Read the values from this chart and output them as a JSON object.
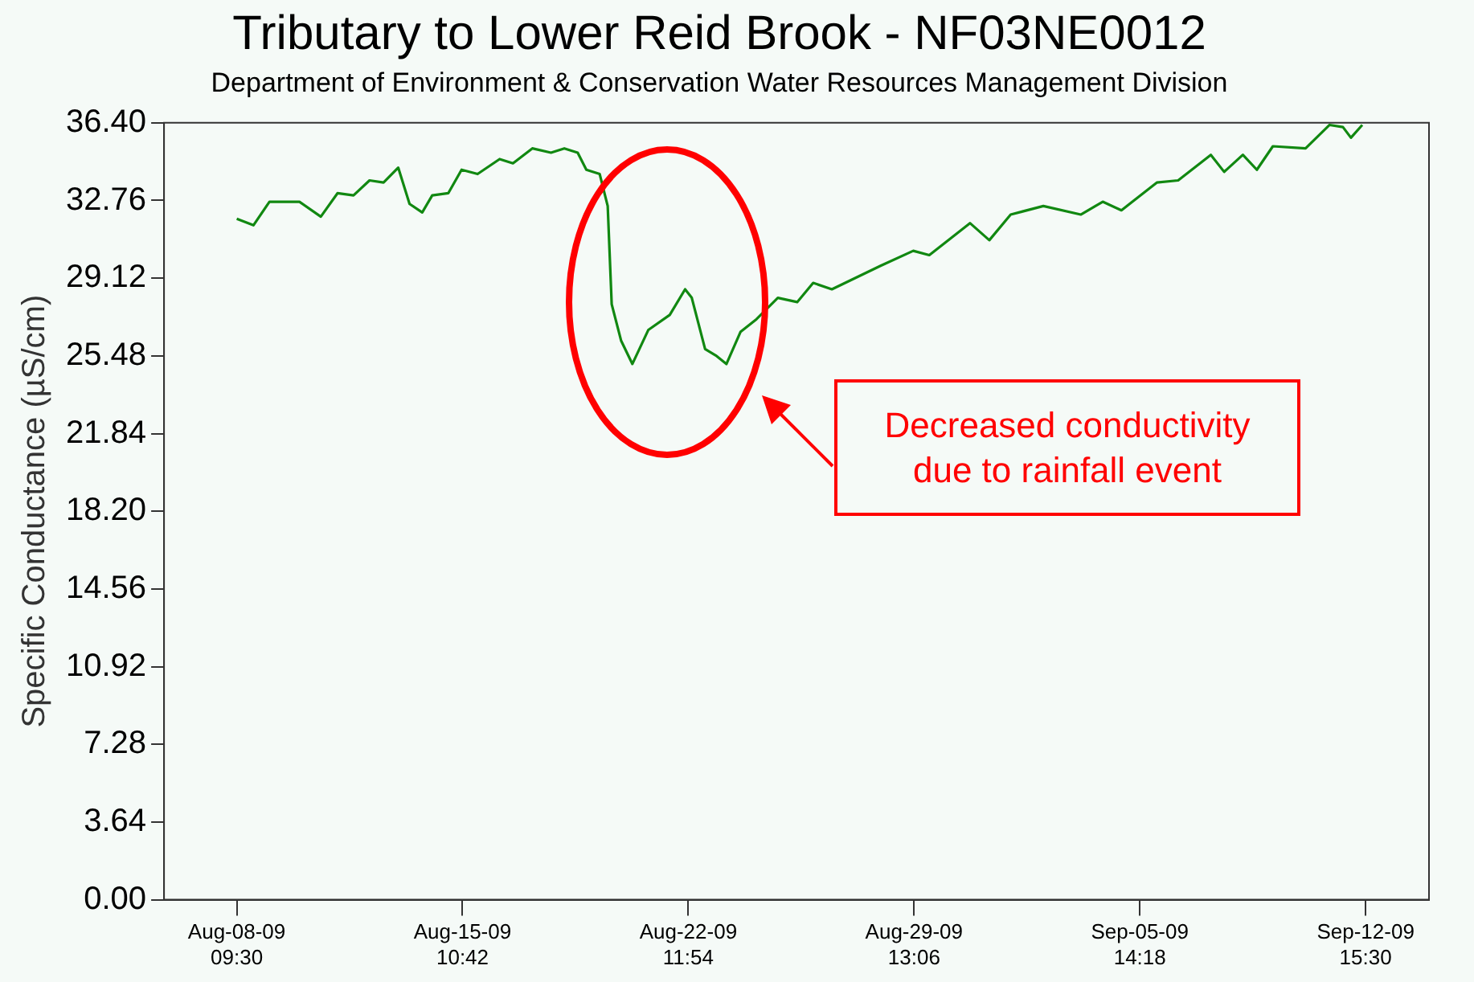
{
  "chart_data": {
    "type": "line",
    "title": "Tributary to Lower Reid Brook - NF03NE0012",
    "subtitle": "Department of Environment & Conservation Water Resources Management Division",
    "ylabel": "Specific Conductance (µS/cm)",
    "x": [
      "--08-08T09:30",
      "--08-08T22:00",
      "--08-09T10:00",
      "--08-10T08:30",
      "--08-11T00:30",
      "--08-11T13:00",
      "--08-12T01:00",
      "--08-12T13:00",
      "--08-12T23:30",
      "--08-13T10:30",
      "--08-13T19:00",
      "--08-14T04:30",
      "--08-14T12:00",
      "--08-15T00:00",
      "--08-15T10:00",
      "--08-15T22:00",
      "--08-16T14:30",
      "--08-17T00:30",
      "--08-17T15:00",
      "--08-18T05:00",
      "--08-18T15:00",
      "--08-19T01:00",
      "--08-19T07:30",
      "--08-19T17:30",
      "--08-19T23:30",
      "--08-20T02:30",
      "--08-20T09:30",
      "--08-20T18:00",
      "--08-21T06:00",
      "--08-21T22:00",
      "--08-22T09:30",
      "--08-22T14:30",
      "--08-23T00:30",
      "--08-23T08:30",
      "--08-23T16:30",
      "--08-24T03:00",
      "--08-24T15:00",
      "--08-25T07:00",
      "--08-25T21:30",
      "--08-26T09:30",
      "--08-26T23:30",
      "--08-28T12:00",
      "--08-29T12:30",
      "--08-30T00:30",
      "--08-31T07:00",
      "--08-31T21:30",
      "--09-01T13:30",
      "--09-02T14:00",
      "--09-03T18:00",
      "--09-04T10:30",
      "--09-05T00:30",
      "--09-06T03:00",
      "--09-06T19:00",
      "--09-07T19:30",
      "--09-08T05:30",
      "--09-08T19:30",
      "--09-09T06:00",
      "--09-09T18:00",
      "--09-10T18:30",
      "--09-11T12:30",
      "--09-11T22:30",
      "--09-12T04:30",
      "--09-12T13:00"
    ],
    "series": [
      {
        "color": "#118811",
        "values": [
          31.9,
          31.6,
          32.7,
          32.7,
          32.0,
          33.1,
          33.0,
          33.7,
          33.6,
          34.3,
          32.6,
          32.2,
          33.0,
          33.1,
          34.2,
          34.0,
          34.7,
          34.5,
          35.2,
          35.0,
          35.2,
          35.0,
          34.2,
          34.0,
          32.5,
          27.9,
          26.2,
          25.1,
          26.7,
          27.4,
          28.6,
          28.2,
          25.8,
          25.5,
          25.1,
          26.6,
          27.2,
          28.2,
          28.0,
          28.9,
          28.6,
          29.7,
          30.4,
          30.2,
          31.7,
          30.9,
          32.1,
          32.5,
          32.1,
          32.7,
          32.3,
          33.6,
          33.7,
          34.9,
          34.1,
          34.9,
          34.2,
          35.3,
          35.2,
          36.3,
          36.2,
          35.7,
          36.3
        ]
      }
    ],
    "xlim": [
      "--08-06T03:00",
      "--09-14T15:00"
    ],
    "xticks": [
      {
        "value": "--08-08T09:30",
        "label": "Aug-08-09 09:30"
      },
      {
        "value": "--08-15T10:42",
        "label": "Aug-15-09 10:42"
      },
      {
        "value": "--08-22T11:54",
        "label": "Aug-22-09 11:54"
      },
      {
        "value": "--08-29T13:06",
        "label": "Aug-29-09 13:06"
      },
      {
        "value": "--09-05T14:18",
        "label": "Sep-05-09 14:18"
      },
      {
        "value": "--09-12T15:30",
        "label": "Sep-12-09 15:30"
      }
    ],
    "ylim": [
      0,
      36.4
    ],
    "yticks": [
      {
        "value": 0,
        "label": "0.00"
      },
      {
        "value": 3.64,
        "label": "3.64"
      },
      {
        "value": 7.28,
        "label": "7.28"
      },
      {
        "value": 10.92,
        "label": "10.92"
      },
      {
        "value": 14.56,
        "label": "14.56"
      },
      {
        "value": 18.2,
        "label": "18.20"
      },
      {
        "value": 21.84,
        "label": "21.84"
      },
      {
        "value": 25.48,
        "label": "25.48"
      },
      {
        "value": 29.12,
        "label": "29.12"
      },
      {
        "value": 32.76,
        "label": "32.76"
      },
      {
        "value": 36.4,
        "label": "36.40"
      }
    ],
    "grid": false,
    "legend": false,
    "marker": "none",
    "line_style": "solid",
    "annotations": [
      "Decreased conductivity due to rainfall event"
    ]
  }
}
